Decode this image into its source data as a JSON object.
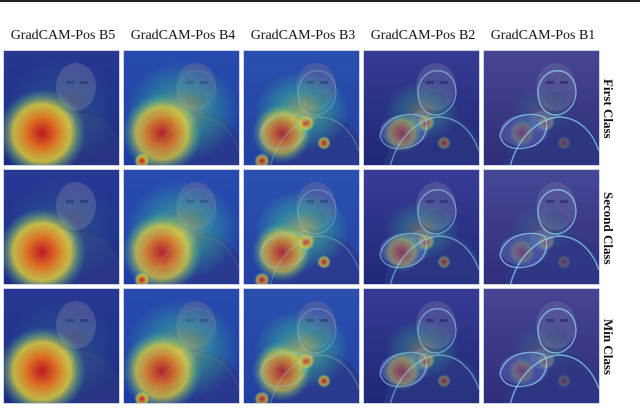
{
  "columns": [
    {
      "label": "GradCAM-Pos B5"
    },
    {
      "label": "GradCAM-Pos B4"
    },
    {
      "label": "GradCAM-Pos B3"
    },
    {
      "label": "GradCAM-Pos B2"
    },
    {
      "label": "GradCAM-Pos B1"
    }
  ],
  "rows": [
    {
      "label": "First Class"
    },
    {
      "label": "Second Class"
    },
    {
      "label": "Min Class"
    }
  ],
  "colors": {
    "heat_low": "#1a2fa8",
    "heat_mid": "#39c8a0",
    "heat_high_yellow": "#f2e03a",
    "heat_high_orange": "#f07a1e",
    "heat_peak": "#d0161b"
  }
}
